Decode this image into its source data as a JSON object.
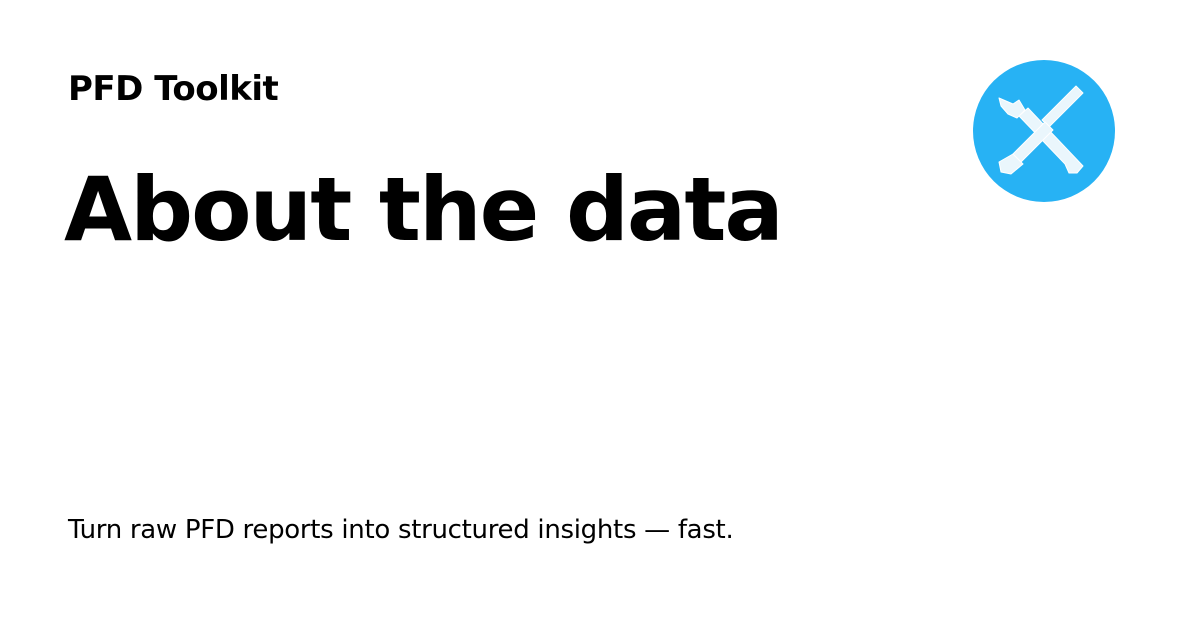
{
  "header": {
    "site_name": "PFD Toolkit"
  },
  "main": {
    "title": "About the data",
    "tagline": "Turn raw PFD reports into structured insights — fast."
  },
  "logo": {
    "icon": "crossed-wrench-screwdriver-icon",
    "background_color": "#27b2f4",
    "tool_color": "#eaf6fc"
  }
}
